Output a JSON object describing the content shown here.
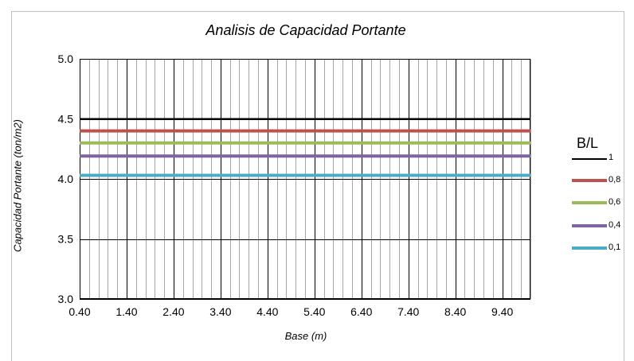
{
  "chart_data": {
    "type": "line",
    "title": "Analisis de Capacidad Portante",
    "xlabel": "Base (m)",
    "ylabel": "Capacidad Portante (ton/m2)",
    "x_ticks": [
      "0.40",
      "1.40",
      "2.40",
      "3.40",
      "4.40",
      "5.40",
      "6.40",
      "7.40",
      "8.40",
      "9.40"
    ],
    "y_ticks": [
      "3.0",
      "3.5",
      "4.0",
      "4.5",
      "5.0"
    ],
    "xlim": [
      0.4,
      10.0
    ],
    "ylim": [
      3.0,
      5.0
    ],
    "grid": true,
    "legend_title": "B/L",
    "legend_position": "right",
    "series": [
      {
        "name": "1",
        "color": "#000000",
        "value": 4.5
      },
      {
        "name": "0,8",
        "color": "#c0504d",
        "value": 4.4
      },
      {
        "name": "0,6",
        "color": "#9bbb59",
        "value": 4.3
      },
      {
        "name": "0,4",
        "color": "#8064a2",
        "value": 4.19
      },
      {
        "name": "0,1",
        "color": "#4bacc6",
        "value": 4.03
      }
    ]
  }
}
